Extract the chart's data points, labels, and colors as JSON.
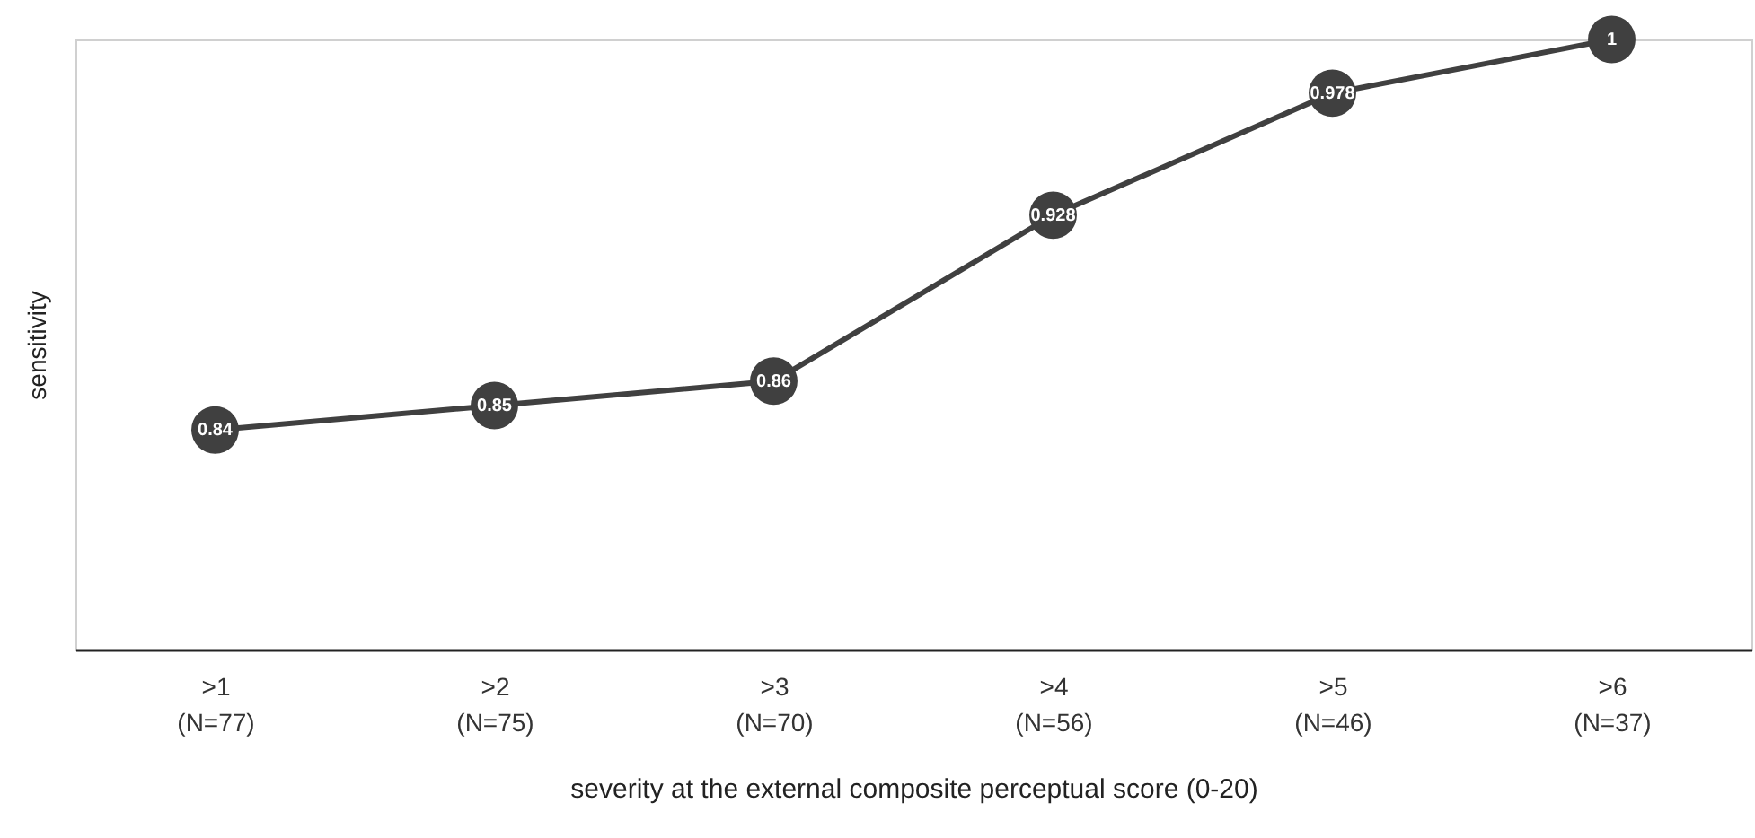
{
  "chart_data": {
    "type": "line",
    "xlabel": "severity at the external composite perceptual score (0-20)",
    "ylabel": "sensitivity",
    "categories": [
      ">1\n(N=77)",
      ">2\n(N=75)",
      ">3\n(N=70)",
      ">4\n(N=56)",
      ">5\n(N=46)",
      ">6\n(N=37)"
    ],
    "series": [
      {
        "color": "#404040",
        "values": [
          0.84,
          0.85,
          0.86,
          0.928,
          0.978,
          1
        ]
      }
    ],
    "ylim": [
      0.75,
      1
    ],
    "data_labels": true,
    "marker": "circle",
    "line_style": "solid",
    "tick_labels": "x"
  }
}
